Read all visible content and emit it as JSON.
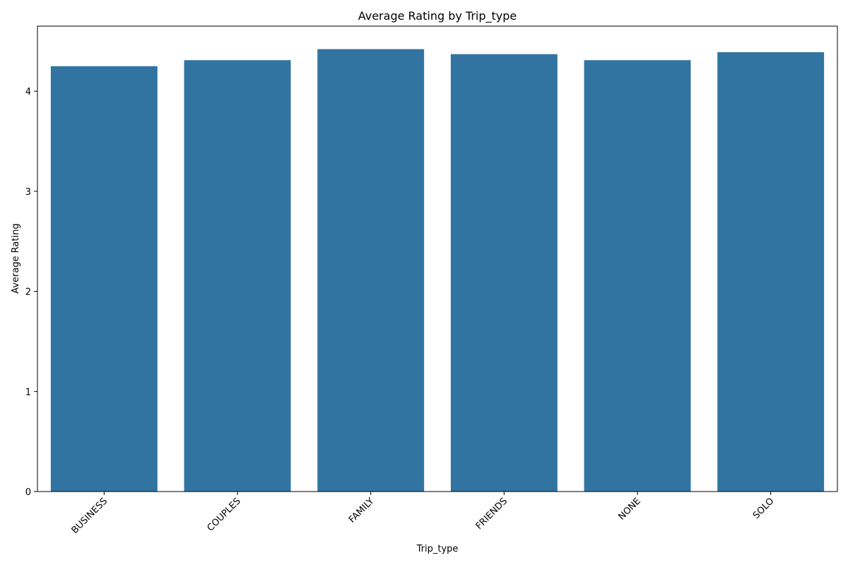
{
  "chart_data": {
    "type": "bar",
    "title": "Average Rating by Trip_type",
    "xlabel": "Trip_type",
    "ylabel": "Average Rating",
    "categories": [
      "BUSINESS",
      "COUPLES",
      "FAMILY",
      "FRIENDS",
      "NONE",
      "SOLO"
    ],
    "values": [
      4.25,
      4.31,
      4.42,
      4.37,
      4.31,
      4.39
    ],
    "ylim": [
      0,
      4.65
    ],
    "yticks": [
      0,
      1,
      2,
      3,
      4
    ],
    "grid": false,
    "bar_color": "#3274a1",
    "xtick_rotation_deg": 45
  }
}
